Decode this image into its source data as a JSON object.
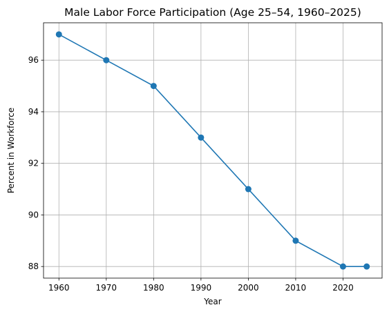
{
  "chart_data": {
    "type": "line",
    "title": "Male Labor Force Participation (Age 25–54, 1960–2025)",
    "xlabel": "Year",
    "ylabel": "Percent in Workforce",
    "x": [
      1960,
      1970,
      1980,
      1990,
      2000,
      2010,
      2020,
      2025
    ],
    "series": [
      {
        "values": [
          97,
          96,
          95,
          93,
          91,
          89,
          88,
          88
        ]
      }
    ],
    "xlim": [
      1956.75,
      2028.25
    ],
    "ylim": [
      87.55,
      97.45
    ],
    "xticks": [
      1960,
      1970,
      1980,
      1990,
      2000,
      2010,
      2020
    ],
    "yticks": [
      88,
      90,
      92,
      94,
      96
    ],
    "grid": true,
    "colors": {
      "line": "#1f77b4",
      "grid": "#b0b0b0"
    }
  }
}
